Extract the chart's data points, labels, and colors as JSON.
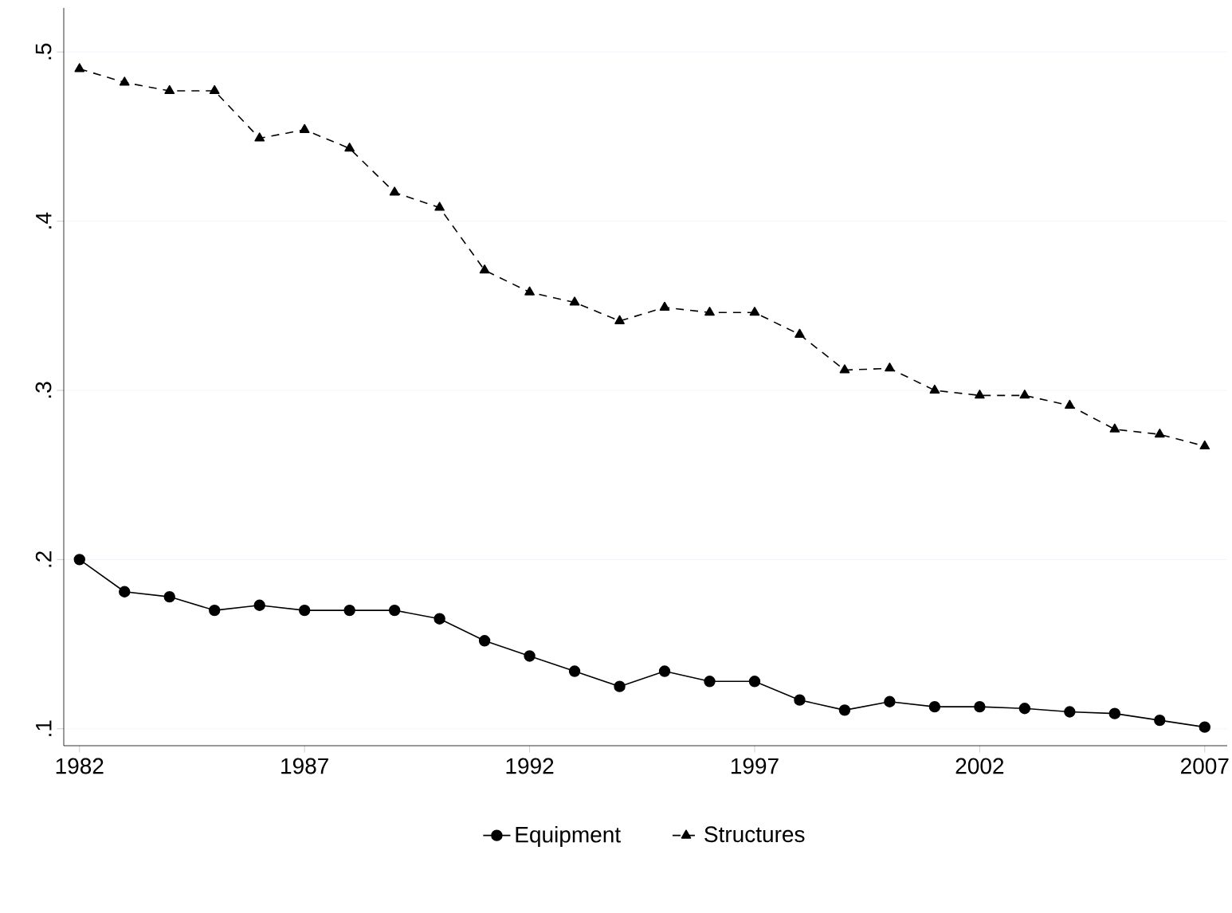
{
  "chart_data": {
    "type": "line",
    "x": [
      1982,
      1983,
      1984,
      1985,
      1986,
      1987,
      1988,
      1989,
      1990,
      1991,
      1992,
      1993,
      1994,
      1995,
      1996,
      1997,
      1998,
      1999,
      2000,
      2001,
      2002,
      2003,
      2004,
      2005,
      2006,
      2007
    ],
    "series": [
      {
        "name": "Equipment",
        "color": "#000000",
        "marker": "circle",
        "line_style": "solid",
        "values": [
          0.2,
          0.181,
          0.178,
          0.17,
          0.173,
          0.17,
          0.17,
          0.17,
          0.165,
          0.152,
          0.143,
          0.134,
          0.125,
          0.134,
          0.128,
          0.128,
          0.117,
          0.111,
          0.116,
          0.113,
          0.113,
          0.112,
          0.11,
          0.109,
          0.105,
          0.101
        ]
      },
      {
        "name": "Structures",
        "color": "#000000",
        "marker": "triangle",
        "line_style": "dashed",
        "values": [
          0.49,
          0.482,
          0.477,
          0.477,
          0.449,
          0.454,
          0.443,
          0.417,
          0.408,
          0.371,
          0.358,
          0.352,
          0.341,
          0.349,
          0.346,
          0.346,
          0.333,
          0.312,
          0.313,
          0.3,
          0.297,
          0.297,
          0.291,
          0.277,
          0.274,
          0.267
        ]
      }
    ],
    "xlim": [
      1981.65,
      2007.5
    ],
    "ylim": [
      0.09,
      0.526
    ],
    "xticks": [
      1982,
      1987,
      1992,
      1997,
      2002,
      2007
    ],
    "yticks": [
      {
        "value": 0.1,
        "label": ".1"
      },
      {
        "value": 0.2,
        "label": ".2"
      },
      {
        "value": 0.3,
        "label": ".3"
      },
      {
        "value": 0.4,
        "label": ".4"
      },
      {
        "value": 0.5,
        "label": ".5"
      }
    ],
    "grid": "y",
    "legend": "bottom"
  }
}
